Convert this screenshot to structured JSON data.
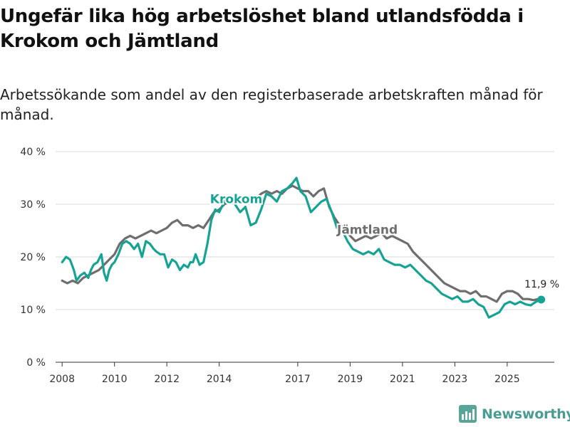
{
  "title": "Ungefär lika hög arbetslöshet bland utlandsfödda i Krokom och Jämtland",
  "subtitle": "Arbetssökande som andel av den registerbaserade arbetskraften månad för månad.",
  "brand": {
    "name": "Newsworthy",
    "logo_icon": "newsworthy-logo-icon"
  },
  "chart_data": {
    "type": "line",
    "title": "Ungefär lika hög arbetslöshet bland utlandsfödda i Krokom och Jämtland",
    "xlabel": "",
    "ylabel": "",
    "ylim": [
      0,
      40
    ],
    "xlim": [
      2007.75,
      2026.8
    ],
    "grid": true,
    "y_ticks": [
      0,
      10,
      20,
      30,
      40
    ],
    "y_tick_labels": [
      "0 %",
      "10 %",
      "20 %",
      "30 %",
      "40 %"
    ],
    "x_ticks": [
      2008,
      2010,
      2012,
      2014,
      2017,
      2019,
      2021,
      2023,
      2025
    ],
    "x_tick_labels": [
      "2008",
      "2010",
      "2012",
      "2014",
      "2017",
      "2019",
      "2021",
      "2023",
      "2025"
    ],
    "end_label": "11,9 %",
    "series": [
      {
        "name": "Krokom",
        "color": "#16a394",
        "x": [
          2008.0,
          2008.15,
          2008.3,
          2008.45,
          2008.55,
          2008.7,
          2008.85,
          2009.0,
          2009.1,
          2009.2,
          2009.35,
          2009.5,
          2009.6,
          2009.7,
          2009.8,
          2009.9,
          2010.0,
          2010.15,
          2010.3,
          2010.45,
          2010.6,
          2010.75,
          2010.9,
          2011.05,
          2011.2,
          2011.35,
          2011.5,
          2011.6,
          2011.75,
          2011.9,
          2012.05,
          2012.2,
          2012.35,
          2012.5,
          2012.65,
          2012.8,
          2012.9,
          2013.0,
          2013.1,
          2013.25,
          2013.4,
          2013.55,
          2013.7,
          2013.85,
          2014.0,
          2014.2,
          2014.4,
          2014.6,
          2014.8,
          2015.0,
          2015.2,
          2015.4,
          2015.6,
          2015.8,
          2016.0,
          2016.2,
          2016.4,
          2016.6,
          2016.8,
          2016.95,
          2017.1,
          2017.3,
          2017.5,
          2017.7,
          2017.9,
          2018.1,
          2018.3,
          2018.5,
          2018.7,
          2018.9,
          2019.1,
          2019.3,
          2019.5,
          2019.7,
          2019.9,
          2020.1,
          2020.3,
          2020.5,
          2020.7,
          2020.9,
          2021.1,
          2021.3,
          2021.5,
          2021.7,
          2021.9,
          2022.1,
          2022.3,
          2022.5,
          2022.7,
          2022.9,
          2023.1,
          2023.3,
          2023.5,
          2023.7,
          2023.9,
          2024.1,
          2024.3,
          2024.5,
          2024.7,
          2024.9,
          2025.1,
          2025.3,
          2025.5,
          2025.7,
          2025.9,
          2026.1,
          2026.3
        ],
        "values": [
          19.0,
          20.0,
          19.5,
          17.5,
          15.5,
          16.5,
          17.0,
          16.0,
          17.5,
          18.5,
          19.0,
          20.5,
          17.0,
          15.5,
          17.5,
          18.5,
          19.0,
          20.5,
          22.5,
          23.0,
          22.5,
          21.5,
          22.5,
          20.0,
          23.0,
          22.5,
          21.5,
          21.0,
          20.5,
          20.5,
          18.0,
          19.5,
          19.0,
          17.5,
          18.5,
          18.0,
          19.0,
          19.0,
          20.5,
          18.5,
          19.0,
          22.5,
          27.0,
          29.0,
          28.5,
          30.5,
          31.5,
          30.0,
          28.5,
          29.5,
          26.0,
          26.5,
          29.0,
          32.0,
          31.5,
          30.5,
          32.5,
          33.0,
          34.0,
          35.0,
          32.5,
          31.5,
          28.5,
          29.5,
          30.5,
          31.0,
          28.5,
          25.5,
          25.0,
          23.0,
          21.5,
          21.0,
          20.5,
          21.0,
          20.5,
          21.5,
          19.5,
          19.0,
          18.5,
          18.5,
          18.0,
          18.5,
          17.5,
          16.5,
          15.5,
          15.0,
          14.0,
          13.0,
          12.5,
          12.0,
          12.5,
          11.5,
          11.5,
          12.0,
          11.0,
          10.5,
          8.5,
          9.0,
          9.5,
          11.0,
          11.5,
          11.0,
          11.5,
          11.0,
          10.8,
          11.5,
          11.9
        ],
        "label_x": 2013.65,
        "label_y": 30.2
      },
      {
        "name": "Jämtland",
        "color": "#6e6e6e",
        "x": [
          2008.0,
          2008.2,
          2008.4,
          2008.6,
          2008.8,
          2009.0,
          2009.2,
          2009.4,
          2009.6,
          2009.8,
          2010.0,
          2010.2,
          2010.4,
          2010.6,
          2010.8,
          2011.0,
          2011.2,
          2011.4,
          2011.6,
          2011.8,
          2012.0,
          2012.2,
          2012.4,
          2012.6,
          2012.8,
          2013.0,
          2013.2,
          2013.4,
          2013.6,
          2013.8,
          2014.0,
          2014.2,
          2014.4,
          2014.6,
          2014.8,
          2015.0,
          2015.2,
          2015.4,
          2015.6,
          2015.8,
          2016.0,
          2016.2,
          2016.4,
          2016.6,
          2016.8,
          2017.0,
          2017.2,
          2017.4,
          2017.6,
          2017.8,
          2018.0,
          2018.2,
          2018.4,
          2018.6,
          2018.8,
          2019.0,
          2019.2,
          2019.4,
          2019.6,
          2019.8,
          2020.0,
          2020.2,
          2020.4,
          2020.6,
          2020.8,
          2021.0,
          2021.2,
          2021.4,
          2021.6,
          2021.8,
          2022.0,
          2022.2,
          2022.4,
          2022.6,
          2022.8,
          2023.0,
          2023.2,
          2023.4,
          2023.6,
          2023.8,
          2024.0,
          2024.2,
          2024.4,
          2024.6,
          2024.8,
          2025.0,
          2025.2,
          2025.4,
          2025.6,
          2025.8,
          2026.0,
          2026.2,
          2026.3
        ],
        "values": [
          15.5,
          15.0,
          15.5,
          15.0,
          16.0,
          16.5,
          17.0,
          17.5,
          18.5,
          19.5,
          20.5,
          22.5,
          23.5,
          24.0,
          23.5,
          24.0,
          24.5,
          25.0,
          24.5,
          25.0,
          25.5,
          26.5,
          27.0,
          26.0,
          26.0,
          25.5,
          26.0,
          25.5,
          27.0,
          28.5,
          29.0,
          30.0,
          30.5,
          31.0,
          30.5,
          31.0,
          31.5,
          31.0,
          32.0,
          32.5,
          32.0,
          32.5,
          32.0,
          33.0,
          33.5,
          33.0,
          32.5,
          32.5,
          31.5,
          32.5,
          33.0,
          29.5,
          27.5,
          26.0,
          25.5,
          24.0,
          23.0,
          23.5,
          24.0,
          23.5,
          24.0,
          24.5,
          23.5,
          24.0,
          23.5,
          23.0,
          22.5,
          21.0,
          20.0,
          19.0,
          18.0,
          17.0,
          16.0,
          15.0,
          14.5,
          14.0,
          13.5,
          13.5,
          13.0,
          13.5,
          12.5,
          12.5,
          12.0,
          11.5,
          13.0,
          13.5,
          13.5,
          13.0,
          12.0,
          12.0,
          11.8,
          12.0,
          11.9
        ],
        "label_x": 2018.5,
        "label_y": 24.4
      }
    ]
  }
}
